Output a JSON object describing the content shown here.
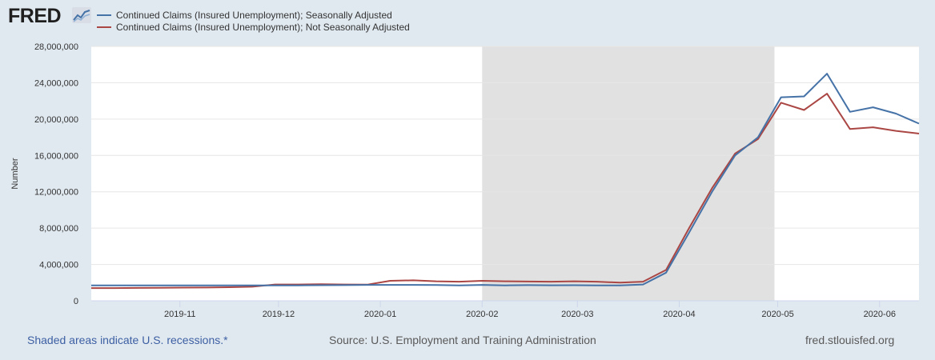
{
  "brand": {
    "logo_text": "FRED"
  },
  "footer": {
    "recession_note": "Shaded areas indicate U.S. recessions.*",
    "source": "Source: U.S. Employment and Training Administration",
    "site": "fred.stlouisfed.org"
  },
  "colors": {
    "background": "#e1e9f0",
    "plot_background": "#ffffff",
    "recession_shade": "#e1e1e1",
    "series_sa": "#4572a7",
    "series_nsa": "#aa4643"
  },
  "chart_data": {
    "type": "line",
    "title": "",
    "xlabel": "",
    "ylabel": "Number",
    "ylim": [
      0,
      28000000
    ],
    "yticks": [
      0,
      4000000,
      8000000,
      12000000,
      16000000,
      20000000,
      24000000,
      28000000
    ],
    "ytick_labels": [
      "0",
      "4,000,000",
      "8,000,000",
      "12,000,000",
      "16,000,000",
      "20,000,000",
      "24,000,000",
      "28,000,000"
    ],
    "xlim": [
      "2019-10-05",
      "2020-06-13"
    ],
    "xticks": [
      "2019-11-01",
      "2019-12-01",
      "2020-01-01",
      "2020-02-01",
      "2020-03-01",
      "2020-04-01",
      "2020-05-01",
      "2020-06-01"
    ],
    "xtick_labels": [
      "2019-11",
      "2019-12",
      "2020-01",
      "2020-02",
      "2020-03",
      "2020-04",
      "2020-05",
      "2020-06"
    ],
    "recession": {
      "start": "2020-02-01",
      "end": "2020-04-30"
    },
    "grid": true,
    "legend_position": "top-left",
    "x": [
      "2019-10-05",
      "2019-10-12",
      "2019-10-19",
      "2019-10-26",
      "2019-11-02",
      "2019-11-09",
      "2019-11-16",
      "2019-11-23",
      "2019-11-30",
      "2019-12-07",
      "2019-12-14",
      "2019-12-21",
      "2019-12-28",
      "2020-01-04",
      "2020-01-11",
      "2020-01-18",
      "2020-01-25",
      "2020-02-01",
      "2020-02-08",
      "2020-02-15",
      "2020-02-22",
      "2020-02-29",
      "2020-03-07",
      "2020-03-14",
      "2020-03-21",
      "2020-03-28",
      "2020-04-04",
      "2020-04-11",
      "2020-04-18",
      "2020-04-25",
      "2020-05-02",
      "2020-05-09",
      "2020-05-16",
      "2020-05-23",
      "2020-05-30",
      "2020-06-06",
      "2020-06-13"
    ],
    "series": [
      {
        "name": "Continued Claims (Insured Unemployment); Seasonally Adjusted",
        "color": "#4572a7",
        "values": [
          1700000,
          1700000,
          1700000,
          1700000,
          1700000,
          1700000,
          1700000,
          1700000,
          1700000,
          1700000,
          1720000,
          1730000,
          1750000,
          1750000,
          1750000,
          1740000,
          1700000,
          1750000,
          1700000,
          1730000,
          1710000,
          1720000,
          1700000,
          1700000,
          1800000,
          3100000,
          7500000,
          12000000,
          16000000,
          18000000,
          22400000,
          22500000,
          25000000,
          20800000,
          21300000,
          20600000,
          19500000
        ]
      },
      {
        "name": "Continued Claims (Insured Unemployment); Not Seasonally Adjusted",
        "color": "#aa4643",
        "values": [
          1400000,
          1400000,
          1420000,
          1430000,
          1450000,
          1460000,
          1500000,
          1550000,
          1800000,
          1800000,
          1820000,
          1800000,
          1780000,
          2200000,
          2250000,
          2150000,
          2100000,
          2200000,
          2150000,
          2120000,
          2100000,
          2150000,
          2100000,
          2000000,
          2100000,
          3400000,
          8000000,
          12400000,
          16200000,
          17800000,
          21800000,
          21000000,
          22800000,
          18900000,
          19100000,
          18700000,
          18400000
        ]
      }
    ]
  }
}
